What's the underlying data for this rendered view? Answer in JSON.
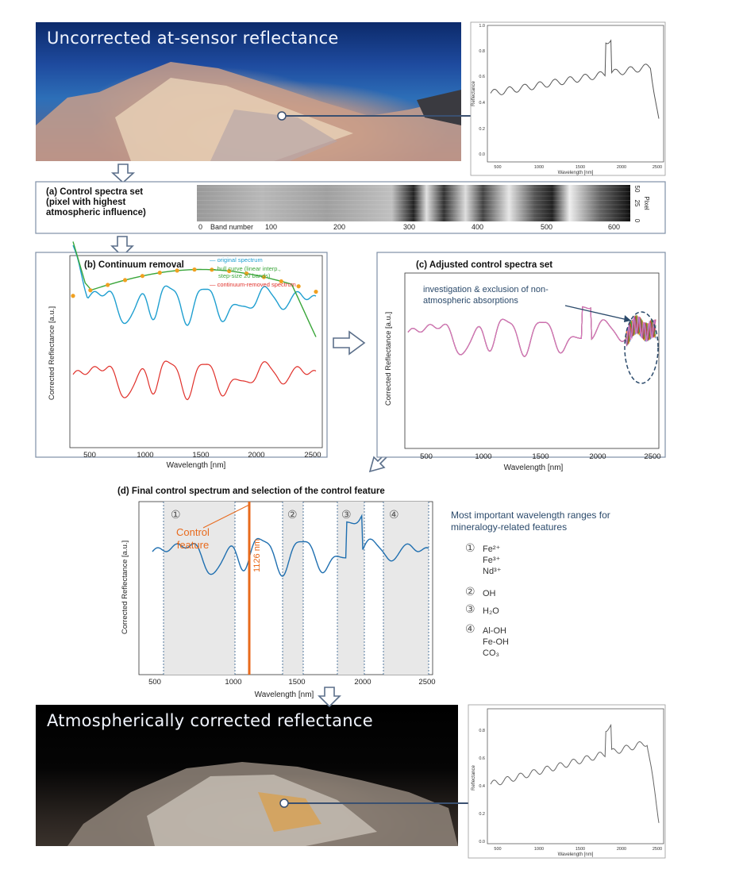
{
  "top_photo": {
    "title": "Uncorrected at-sensor reflectance"
  },
  "bottom_photo": {
    "title": "Atmospherically corrected reflectance"
  },
  "panel_a": {
    "title_lines": [
      "(a) Control spectra set",
      "(pixel with highest",
      "atmospheric influence)"
    ],
    "xticks": [
      "0",
      "100",
      "200",
      "300",
      "400",
      "500",
      "600"
    ],
    "xlabel": "Band number",
    "ylabel": "Pixel",
    "yticks": [
      "0",
      "25",
      "50"
    ]
  },
  "panel_b": {
    "title": "(b) Continuum removal",
    "xlabel": "Wavelength [nm]",
    "ylabel": "Corrected Reflectance [a.u.]",
    "xticks": [
      "500",
      "1000",
      "1500",
      "2000",
      "2500"
    ],
    "legend": [
      {
        "label": "original spectrum",
        "color": "#1f9fd0"
      },
      {
        "label": "hull curve (linear interp.,",
        "label2": "step-size 20 bands)",
        "color": "#3aa63a"
      },
      {
        "label": "continuum-removed spectrum",
        "color": "#e0302a"
      }
    ]
  },
  "panel_c": {
    "title": "(c) Adjusted control spectra set",
    "annotation_lines": [
      "investigation & exclusion of non-",
      "atmospheric absorptions"
    ],
    "xlabel": "Wavelength [nm]",
    "ylabel": "Corrected Reflectance [a.u.]",
    "xticks": [
      "500",
      "1000",
      "1500",
      "2000",
      "2500"
    ]
  },
  "panel_d": {
    "title": "(d) Final control spectrum and selection of the control feature",
    "xlabel": "Wavelength [nm]",
    "ylabel": "Corrected Reflectance [a.u.]",
    "xticks": [
      "500",
      "1000",
      "1500",
      "2000",
      "2500"
    ],
    "control_label_lines": [
      "Control",
      "feature"
    ],
    "control_wavelength": "1126 nm",
    "range_markers": [
      "①",
      "②",
      "③",
      "④"
    ]
  },
  "side_legend": {
    "title_lines": [
      "Most important wavelength ranges for",
      "mineralogy-related features"
    ],
    "groups": [
      {
        "marker": "①",
        "items": [
          "Fe²⁺",
          "Fe³⁺",
          "Nd³⁺"
        ]
      },
      {
        "marker": "②",
        "items": [
          "OH"
        ]
      },
      {
        "marker": "③",
        "items": [
          "H₂O"
        ]
      },
      {
        "marker": "④",
        "items": [
          "Al-OH",
          "Fe-OH",
          "CO₃"
        ]
      }
    ]
  },
  "mini_top": {
    "ylabel": "Reflectance",
    "xlabel": "Wavelength [nm]",
    "xticks": [
      "500",
      "1000",
      "1500",
      "2000",
      "2500"
    ],
    "yticks": [
      "0.0",
      "0.2",
      "0.4",
      "0.6",
      "0.8",
      "1.0"
    ]
  },
  "mini_bottom": {
    "ylabel": "Reflectance",
    "xlabel": "Wavelength [nm]",
    "xticks": [
      "500",
      "1000",
      "1500",
      "2000",
      "2500"
    ],
    "yticks": [
      "0.0",
      "0.2",
      "0.4",
      "0.6",
      "0.8"
    ]
  }
}
